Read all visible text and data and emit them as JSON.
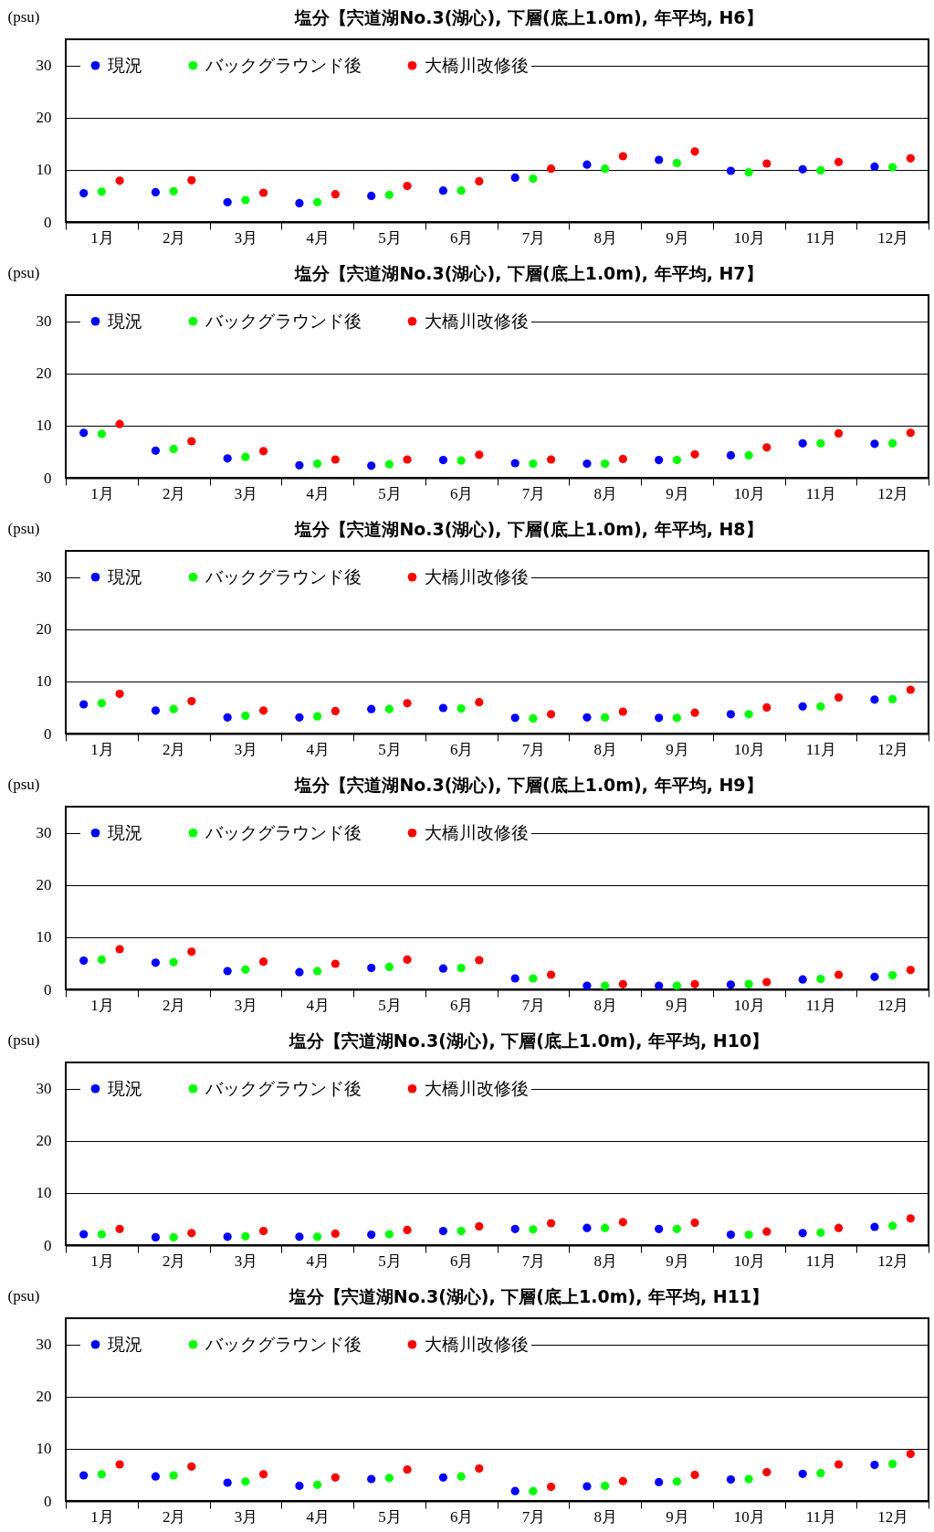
{
  "chart_data": [
    {
      "type": "scatter",
      "title": "塩分【宍道湖No.3(湖心), 下層(底上1.0m), 年平均, H6】",
      "ylabel": "(psu)",
      "categories": [
        "1月",
        "2月",
        "3月",
        "4月",
        "5月",
        "6月",
        "7月",
        "8月",
        "9月",
        "10月",
        "11月",
        "12月"
      ],
      "series": [
        {
          "name": "現況",
          "color": "#0000ff",
          "values": [
            5.5,
            5.7,
            3.8,
            3.6,
            5.0,
            6.0,
            8.5,
            11.0,
            11.9,
            9.8,
            10.1,
            10.6
          ]
        },
        {
          "name": "バックグラウンド後",
          "color": "#00ff00",
          "values": [
            5.8,
            5.9,
            4.2,
            3.8,
            5.2,
            6.0,
            8.3,
            10.2,
            11.3,
            9.5,
            9.9,
            10.5
          ]
        },
        {
          "name": "大橋川改修後",
          "color": "#ff0000",
          "values": [
            7.9,
            8.0,
            5.6,
            5.3,
            6.9,
            7.8,
            10.2,
            12.6,
            13.5,
            11.2,
            11.5,
            12.2
          ]
        }
      ],
      "ylim": [
        0,
        35
      ],
      "yticks": [
        0,
        10,
        20,
        30
      ],
      "grid": "y",
      "legend": "top left",
      "marker": "circle"
    },
    {
      "type": "scatter",
      "title": "塩分【宍道湖No.3(湖心), 下層(底上1.0m), 年平均, H7】",
      "ylabel": "(psu)",
      "categories": [
        "1月",
        "2月",
        "3月",
        "4月",
        "5月",
        "6月",
        "7月",
        "8月",
        "9月",
        "10月",
        "11月",
        "12月"
      ],
      "series": [
        {
          "name": "現況",
          "color": "#0000ff",
          "values": [
            8.6,
            5.2,
            3.7,
            2.4,
            2.3,
            3.4,
            2.8,
            2.7,
            3.4,
            4.3,
            6.6,
            6.5
          ]
        },
        {
          "name": "バックグラウンド後",
          "color": "#00ff00",
          "values": [
            8.4,
            5.5,
            4.0,
            2.7,
            2.6,
            3.3,
            2.7,
            2.7,
            3.4,
            4.3,
            6.6,
            6.6
          ]
        },
        {
          "name": "大橋川改修後",
          "color": "#ff0000",
          "values": [
            10.3,
            7.0,
            5.1,
            3.5,
            3.5,
            4.4,
            3.5,
            3.6,
            4.5,
            5.8,
            8.5,
            8.6
          ]
        }
      ],
      "ylim": [
        0,
        35
      ],
      "yticks": [
        0,
        10,
        20,
        30
      ],
      "grid": "y",
      "legend": "top left",
      "marker": "circle"
    },
    {
      "type": "scatter",
      "title": "塩分【宍道湖No.3(湖心), 下層(底上1.0m), 年平均, H8】",
      "ylabel": "(psu)",
      "categories": [
        "1月",
        "2月",
        "3月",
        "4月",
        "5月",
        "6月",
        "7月",
        "8月",
        "9月",
        "10月",
        "11月",
        "12月"
      ],
      "series": [
        {
          "name": "現況",
          "color": "#0000ff",
          "values": [
            5.6,
            4.4,
            3.1,
            3.1,
            4.7,
            4.9,
            3.0,
            3.1,
            3.0,
            3.7,
            5.2,
            6.5
          ]
        },
        {
          "name": "バックグラウンド後",
          "color": "#00ff00",
          "values": [
            5.8,
            4.7,
            3.4,
            3.3,
            4.7,
            4.8,
            2.9,
            3.1,
            3.0,
            3.7,
            5.2,
            6.6
          ]
        },
        {
          "name": "大橋川改修後",
          "color": "#ff0000",
          "values": [
            7.6,
            6.2,
            4.4,
            4.3,
            5.8,
            6.0,
            3.7,
            4.2,
            4.0,
            5.0,
            6.9,
            8.4
          ]
        }
      ],
      "ylim": [
        0,
        35
      ],
      "yticks": [
        0,
        10,
        20,
        30
      ],
      "grid": "y",
      "legend": "top left",
      "marker": "circle"
    },
    {
      "type": "scatter",
      "title": "塩分【宍道湖No.3(湖心), 下層(底上1.0m), 年平均, H9】",
      "ylabel": "(psu)",
      "categories": [
        "1月",
        "2月",
        "3月",
        "4月",
        "5月",
        "6月",
        "7月",
        "8月",
        "9月",
        "10月",
        "11月",
        "12月"
      ],
      "series": [
        {
          "name": "現況",
          "color": "#0000ff",
          "values": [
            5.5,
            5.1,
            3.5,
            3.3,
            4.1,
            4.0,
            2.1,
            0.7,
            0.7,
            0.9,
            1.9,
            2.4
          ]
        },
        {
          "name": "バックグラウンド後",
          "color": "#00ff00",
          "values": [
            5.7,
            5.2,
            3.8,
            3.5,
            4.3,
            4.1,
            2.1,
            0.7,
            0.7,
            1.0,
            2.0,
            2.7
          ]
        },
        {
          "name": "大橋川改修後",
          "color": "#ff0000",
          "values": [
            7.7,
            7.2,
            5.3,
            4.9,
            5.7,
            5.6,
            2.8,
            1.0,
            1.0,
            1.4,
            2.8,
            3.7
          ]
        }
      ],
      "ylim": [
        0,
        35
      ],
      "yticks": [
        0,
        10,
        20,
        30
      ],
      "grid": "y",
      "legend": "top left",
      "marker": "circle"
    },
    {
      "type": "scatter",
      "title": "塩分【宍道湖No.3(湖心), 下層(底上1.0m), 年平均, H10】",
      "ylabel": "(psu)",
      "categories": [
        "1月",
        "2月",
        "3月",
        "4月",
        "5月",
        "6月",
        "7月",
        "8月",
        "9月",
        "10月",
        "11月",
        "12月"
      ],
      "series": [
        {
          "name": "現況",
          "color": "#0000ff",
          "values": [
            2.1,
            1.5,
            1.6,
            1.6,
            2.0,
            2.7,
            3.1,
            3.3,
            3.1,
            2.0,
            2.3,
            3.5
          ]
        },
        {
          "name": "バックグラウンド後",
          "color": "#00ff00",
          "values": [
            2.1,
            1.5,
            1.7,
            1.6,
            2.1,
            2.7,
            3.0,
            3.3,
            3.1,
            2.0,
            2.4,
            3.7
          ]
        },
        {
          "name": "大橋川改修後",
          "color": "#ff0000",
          "values": [
            3.1,
            2.3,
            2.7,
            2.2,
            2.9,
            3.6,
            4.2,
            4.4,
            4.3,
            2.6,
            3.3,
            5.1
          ]
        }
      ],
      "ylim": [
        0,
        35
      ],
      "yticks": [
        0,
        10,
        20,
        30
      ],
      "grid": "y",
      "legend": "top left",
      "marker": "circle"
    },
    {
      "type": "scatter",
      "title": "塩分【宍道湖No.3(湖心), 下層(底上1.0m), 年平均, H11】",
      "ylabel": "(psu)",
      "categories": [
        "1月",
        "2月",
        "3月",
        "4月",
        "5月",
        "6月",
        "7月",
        "8月",
        "9月",
        "10月",
        "11月",
        "12月"
      ],
      "series": [
        {
          "name": "現況",
          "color": "#0000ff",
          "values": [
            4.9,
            4.7,
            3.5,
            2.9,
            4.2,
            4.5,
            1.9,
            2.8,
            3.6,
            4.1,
            5.2,
            6.9
          ]
        },
        {
          "name": "バックグラウンド後",
          "color": "#00ff00",
          "values": [
            5.1,
            4.9,
            3.7,
            3.1,
            4.4,
            4.7,
            1.9,
            2.9,
            3.7,
            4.2,
            5.3,
            7.1
          ]
        },
        {
          "name": "大橋川改修後",
          "color": "#ff0000",
          "values": [
            7.0,
            6.6,
            5.1,
            4.5,
            6.0,
            6.2,
            2.7,
            3.8,
            5.0,
            5.5,
            7.0,
            9.0
          ]
        }
      ],
      "ylim": [
        0,
        35
      ],
      "yticks": [
        0,
        10,
        20,
        30
      ],
      "grid": "y",
      "legend": "top left",
      "marker": "circle"
    }
  ]
}
